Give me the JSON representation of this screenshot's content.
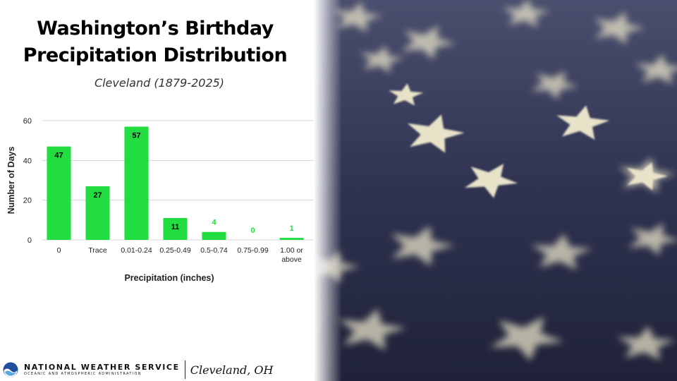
{
  "header": {
    "title_line1": "Washington’s Birthday",
    "title_line2": "Precipitation Distribution",
    "subtitle": "Cleveland (1879-2025)"
  },
  "footer": {
    "agency": "NATIONAL WEATHER SERVICE",
    "agency_sub": "OCEANIC AND ATMOSPHERIC ADMINISTRATION",
    "office": "Cleveland, OH"
  },
  "colors": {
    "bar": "#22dd3f",
    "bar_label_inside": "#000000",
    "bar_label_outside": "#22dd3f",
    "grid": "#d4d4d4",
    "photo_background": "#2f3350",
    "stars": "#e8e2c8"
  },
  "chart_data": {
    "type": "bar",
    "xlabel": "Precipitation (inches)",
    "ylabel": "Number of Days",
    "ylim": [
      0,
      60
    ],
    "yticks": [
      0,
      20,
      40,
      60
    ],
    "grid": true,
    "categories": [
      "0",
      "Trace",
      "0.01-0.24",
      "0.25-0.49",
      "0.5-0.74",
      "0.75-0.99",
      "1.00 or above"
    ],
    "values": [
      47,
      27,
      57,
      11,
      4,
      0,
      1
    ]
  }
}
